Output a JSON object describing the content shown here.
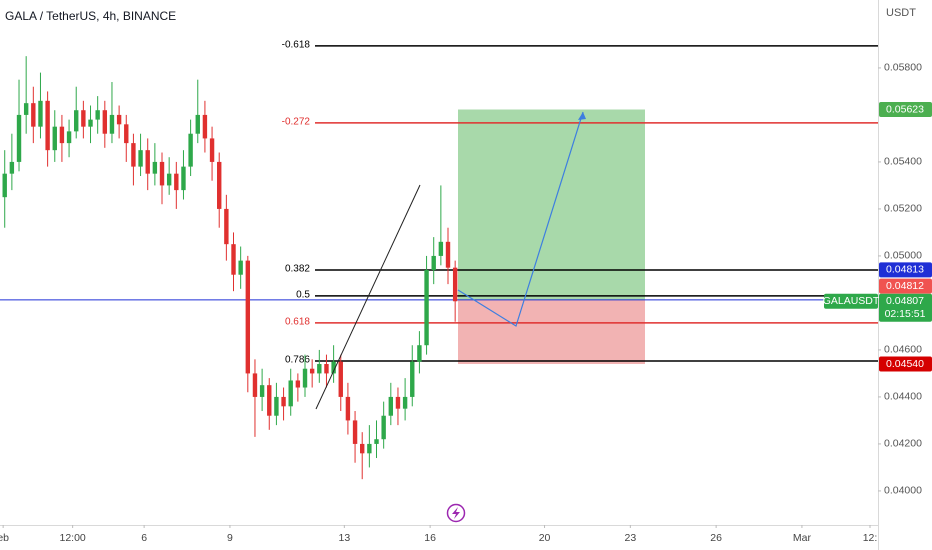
{
  "chart_data": {
    "type": "candlestick",
    "title": "GALA / TetherUS, 4h, BINANCE",
    "y_axis_label": "USDT",
    "symbol": "GALAUSDT",
    "countdown": "02:15:51",
    "up_color": "#2ea84a",
    "down_color": "#e0302f",
    "grid": false,
    "xlim": [
      -8.04,
      22.66
    ],
    "ylim": [
      0.03855,
      0.06089
    ],
    "xticks": [
      {
        "value": -7.93,
        "label": "eb"
      },
      {
        "value": -5.5,
        "label": "12:00"
      },
      {
        "value": -3,
        "label": "6"
      },
      {
        "value": 0,
        "label": "9"
      },
      {
        "value": 4,
        "label": "13"
      },
      {
        "value": 7,
        "label": "16"
      },
      {
        "value": 11,
        "label": "20"
      },
      {
        "value": 14,
        "label": "23"
      },
      {
        "value": 17,
        "label": "26"
      },
      {
        "value": 20,
        "label": "Mar"
      },
      {
        "value": 22.38,
        "label": "12:"
      }
    ],
    "yticks": [
      {
        "value": 0.04,
        "label": "0.04000"
      },
      {
        "value": 0.042,
        "label": "0.04200"
      },
      {
        "value": 0.044,
        "label": "0.04400"
      },
      {
        "value": 0.046,
        "label": "0.04600"
      },
      {
        "value": 0.05,
        "label": "0.05000"
      },
      {
        "value": 0.052,
        "label": "0.05200"
      },
      {
        "value": 0.054,
        "label": "0.05400"
      },
      {
        "value": 0.058,
        "label": "0.05800"
      }
    ],
    "x": [
      -7.875,
      -7.625,
      -7.375,
      -7.125,
      -6.875,
      -6.625,
      -6.375,
      -6.125,
      -5.875,
      -5.625,
      -5.375,
      -5.125,
      -4.875,
      -4.625,
      -4.375,
      -4.125,
      -3.875,
      -3.625,
      -3.375,
      -3.125,
      -2.875,
      -2.625,
      -2.375,
      -2.125,
      -1.875,
      -1.625,
      -1.375,
      -1.125,
      -0.875,
      -0.625,
      -0.375,
      -0.125,
      0.125,
      0.375,
      0.625,
      0.875,
      1.125,
      1.375,
      1.625,
      1.875,
      2.125,
      2.375,
      2.625,
      2.875,
      3.125,
      3.375,
      3.625,
      3.875,
      4.125,
      4.375,
      4.625,
      4.875,
      5.125,
      5.375,
      5.625,
      5.875,
      6.125,
      6.375,
      6.625,
      6.875,
      7.125,
      7.375,
      7.625,
      7.875
    ],
    "ohlc": [
      [
        0.0525,
        0.0545,
        0.0512,
        0.0535
      ],
      [
        0.0535,
        0.0552,
        0.0528,
        0.054
      ],
      [
        0.054,
        0.0575,
        0.0536,
        0.056
      ],
      [
        0.056,
        0.0585,
        0.0552,
        0.0565
      ],
      [
        0.0565,
        0.0572,
        0.0548,
        0.0555
      ],
      [
        0.0555,
        0.0578,
        0.055,
        0.0566
      ],
      [
        0.0566,
        0.057,
        0.0538,
        0.0545
      ],
      [
        0.0545,
        0.0562,
        0.054,
        0.0555
      ],
      [
        0.0555,
        0.056,
        0.054,
        0.0548
      ],
      [
        0.0548,
        0.0558,
        0.0542,
        0.0553
      ],
      [
        0.0553,
        0.0572,
        0.055,
        0.0562
      ],
      [
        0.0562,
        0.0566,
        0.055,
        0.0555
      ],
      [
        0.0555,
        0.0564,
        0.0548,
        0.0558
      ],
      [
        0.0558,
        0.0568,
        0.0552,
        0.0562
      ],
      [
        0.0562,
        0.0566,
        0.0546,
        0.0552
      ],
      [
        0.0552,
        0.0574,
        0.0548,
        0.056
      ],
      [
        0.056,
        0.0564,
        0.055,
        0.0556
      ],
      [
        0.0556,
        0.056,
        0.054,
        0.0548
      ],
      [
        0.0548,
        0.0552,
        0.053,
        0.0538
      ],
      [
        0.0538,
        0.0552,
        0.0534,
        0.0545
      ],
      [
        0.0545,
        0.055,
        0.0528,
        0.0535
      ],
      [
        0.0535,
        0.0548,
        0.053,
        0.054
      ],
      [
        0.054,
        0.0544,
        0.0522,
        0.053
      ],
      [
        0.053,
        0.0542,
        0.0526,
        0.0535
      ],
      [
        0.0535,
        0.054,
        0.052,
        0.0528
      ],
      [
        0.0528,
        0.0545,
        0.0524,
        0.0538
      ],
      [
        0.0538,
        0.0558,
        0.0534,
        0.0552
      ],
      [
        0.0552,
        0.0575,
        0.0548,
        0.056
      ],
      [
        0.056,
        0.0566,
        0.0544,
        0.055
      ],
      [
        0.055,
        0.0555,
        0.0532,
        0.054
      ],
      [
        0.054,
        0.0544,
        0.0512,
        0.052
      ],
      [
        0.052,
        0.0526,
        0.0498,
        0.0505
      ],
      [
        0.0505,
        0.051,
        0.0485,
        0.0492
      ],
      [
        0.0492,
        0.0504,
        0.0486,
        0.0498
      ],
      [
        0.0498,
        0.05,
        0.0442,
        0.045
      ],
      [
        0.045,
        0.0456,
        0.0423,
        0.044
      ],
      [
        0.044,
        0.0452,
        0.0434,
        0.0445
      ],
      [
        0.0445,
        0.0448,
        0.0426,
        0.0432
      ],
      [
        0.0432,
        0.0446,
        0.0428,
        0.044
      ],
      [
        0.044,
        0.0444,
        0.043,
        0.0436
      ],
      [
        0.0436,
        0.0452,
        0.0432,
        0.0447
      ],
      [
        0.0447,
        0.045,
        0.0438,
        0.0444
      ],
      [
        0.0444,
        0.0458,
        0.044,
        0.0452
      ],
      [
        0.0452,
        0.0456,
        0.0444,
        0.045
      ],
      [
        0.045,
        0.046,
        0.0446,
        0.0454
      ],
      [
        0.0454,
        0.0458,
        0.0444,
        0.045
      ],
      [
        0.045,
        0.0462,
        0.0446,
        0.0455
      ],
      [
        0.0455,
        0.0458,
        0.0434,
        0.044
      ],
      [
        0.044,
        0.0446,
        0.0424,
        0.043
      ],
      [
        0.043,
        0.0434,
        0.0412,
        0.042
      ],
      [
        0.042,
        0.0425,
        0.0405,
        0.0416
      ],
      [
        0.0416,
        0.0428,
        0.041,
        0.042
      ],
      [
        0.042,
        0.043,
        0.0414,
        0.0422
      ],
      [
        0.0422,
        0.0438,
        0.0418,
        0.0432
      ],
      [
        0.0432,
        0.0446,
        0.0428,
        0.044
      ],
      [
        0.044,
        0.0444,
        0.0428,
        0.0435
      ],
      [
        0.0435,
        0.0448,
        0.043,
        0.044
      ],
      [
        0.044,
        0.0462,
        0.0436,
        0.0455
      ],
      [
        0.0455,
        0.0468,
        0.045,
        0.0462
      ],
      [
        0.0462,
        0.05,
        0.0458,
        0.0494
      ],
      [
        0.0494,
        0.0508,
        0.0488,
        0.05
      ],
      [
        0.05,
        0.053,
        0.0496,
        0.0506
      ],
      [
        0.0506,
        0.0512,
        0.0488,
        0.0495
      ],
      [
        0.0495,
        0.0498,
        0.0472,
        0.04807
      ]
    ],
    "fib_levels": [
      {
        "label": "-0.618",
        "value": 0.05894,
        "color": "#000000"
      },
      {
        "label": "-0.272",
        "value": 0.05566,
        "color": "#e0302f"
      },
      {
        "label": "0.382",
        "value": 0.0494,
        "color": "#000000"
      },
      {
        "label": "0.5",
        "value": 0.0483,
        "color": "#000000"
      },
      {
        "label": "0.618",
        "value": 0.04715,
        "color": "#e0302f"
      },
      {
        "label": "0.786",
        "value": 0.04553,
        "color": "#000000"
      }
    ],
    "position": {
      "target": 0.05623,
      "entry": 0.04813,
      "stop": 0.0454,
      "profit_color": "#a8d9aa",
      "loss_color": "#f2b3b3"
    },
    "price_line": {
      "value": 0.04813,
      "color": "#1f2fd6"
    },
    "price_labels": [
      {
        "value": 0.05623,
        "label": "0.05623",
        "color": "#4caf50"
      },
      {
        "value": 0.04813,
        "label": "0.04813",
        "color": "#1f2fd6"
      },
      {
        "value": 0.04812,
        "label": "0.04812",
        "color": "#f05350"
      },
      {
        "value": 0.04807,
        "label": "0.04807",
        "color": "#2ea84a"
      },
      {
        "value": 0.0454,
        "label": "0.04540",
        "color": "#d50000"
      }
    ]
  }
}
